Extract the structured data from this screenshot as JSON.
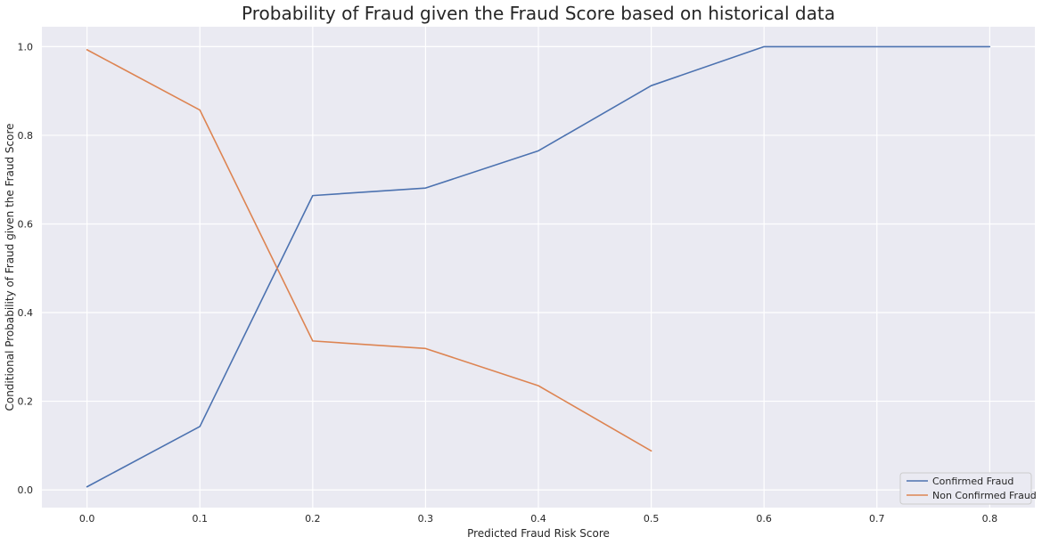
{
  "chart_data": {
    "type": "line",
    "title": "Probability of Fraud given the Fraud Score based on historical data",
    "xlabel": "Predicted Fraud Risk Score",
    "ylabel": "Conditional Probability of Fraud given the Fraud Score",
    "xlim": [
      -0.04,
      0.84
    ],
    "ylim": [
      -0.04,
      1.045
    ],
    "x_ticks": [
      "0.0",
      "0.1",
      "0.2",
      "0.3",
      "0.4",
      "0.5",
      "0.6",
      "0.7",
      "0.8"
    ],
    "y_ticks": [
      "0.0",
      "0.2",
      "0.4",
      "0.6",
      "0.8",
      "1.0"
    ],
    "grid": true,
    "legend_position": "bottom-right",
    "series": [
      {
        "name": "Confirmed Fraud",
        "color": "#4c72b0",
        "x": [
          0.0,
          0.1,
          0.2,
          0.3,
          0.4,
          0.5,
          0.6,
          0.7,
          0.8
        ],
        "y": [
          0.007,
          0.143,
          0.664,
          0.681,
          0.765,
          0.912,
          1.0,
          1.0,
          1.0
        ]
      },
      {
        "name": "Non Confirmed Fraud",
        "color": "#dd8452",
        "x": [
          0.0,
          0.1,
          0.2,
          0.3,
          0.4,
          0.5
        ],
        "y": [
          0.993,
          0.857,
          0.336,
          0.319,
          0.235,
          0.088
        ]
      }
    ]
  },
  "style": {
    "plot_background": "#eaeaf2",
    "grid_color": "#ffffff"
  }
}
